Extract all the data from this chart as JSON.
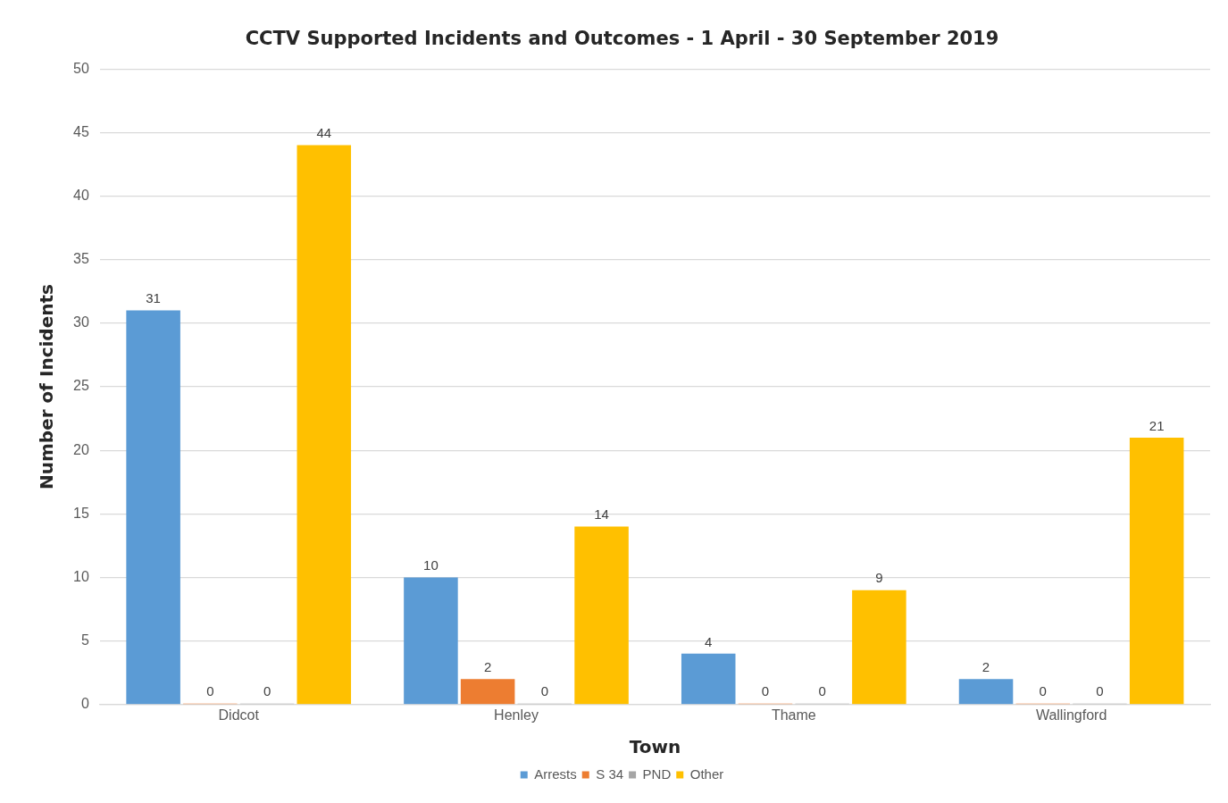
{
  "chart_data": {
    "type": "bar",
    "title": "CCTV Supported Incidents and Outcomes - 1 April - 30 September 2019",
    "xlabel": "Town",
    "ylabel": "Number of Incidents",
    "categories": [
      "Didcot",
      "Henley",
      "Thame",
      "Wallingford"
    ],
    "series": [
      {
        "name": "Arrests",
        "color": "#5b9bd5",
        "values": [
          31,
          10,
          4,
          2
        ]
      },
      {
        "name": "S 34",
        "color": "#ed7d31",
        "values": [
          0,
          2,
          0,
          0
        ]
      },
      {
        "name": "PND",
        "color": "#a5a5a5",
        "values": [
          0,
          0,
          0,
          0
        ]
      },
      {
        "name": "Other",
        "color": "#ffc000",
        "values": [
          44,
          14,
          9,
          21
        ]
      }
    ],
    "ylim": [
      0,
      50
    ],
    "yticks": [
      0,
      5,
      10,
      15,
      20,
      25,
      30,
      35,
      40,
      45,
      50
    ],
    "grid": "y",
    "legend": "bottom",
    "data_labels": true
  }
}
